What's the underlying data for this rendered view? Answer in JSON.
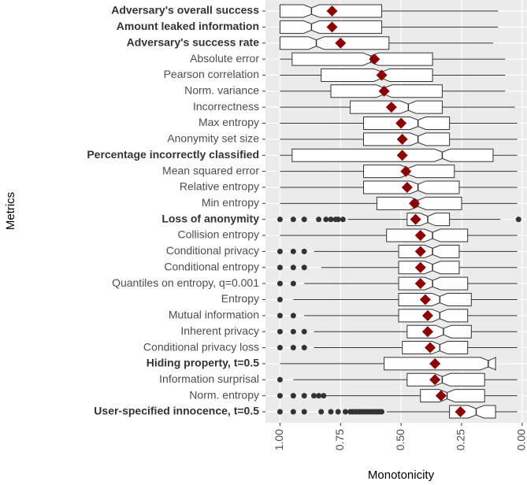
{
  "chart_data": {
    "type": "boxplot",
    "xlabel": "Monotonicity",
    "ylabel": "Metrics",
    "xlim": [
      1.06,
      -0.02
    ],
    "xticks": [
      {
        "value": 1,
        "label": "1.00"
      },
      {
        "value": 0.75,
        "label": "0.75"
      },
      {
        "value": 0.5,
        "label": "0.50"
      },
      {
        "value": 0.25,
        "label": "0.25"
      },
      {
        "value": 0,
        "label": "0.00"
      }
    ],
    "grid": true,
    "box_color": "#ffffff",
    "mean_color": "#8b0000",
    "outlier_color": "#333333",
    "categories": [
      "Adversary's overall success",
      "Amount leaked information",
      "Adversary's success rate",
      "Absolute error",
      "Pearson correlation",
      "Norm. variance",
      "Incorrectness",
      "Max entropy",
      "Anonymity set size",
      "Percentage incorrectly classified",
      "Mean squared error",
      "Relative entropy",
      "Min entropy",
      "Loss of anonymity",
      "Collision entropy",
      "Conditional privacy",
      "Conditional entropy",
      "Quantiles on entropy, q=0.001",
      "Entropy",
      "Mutual information",
      "Inherent privacy",
      "Conditional privacy loss",
      "Hiding property, t=0.5",
      "Information surprisal",
      "Norm. entropy",
      "User-specified innocence, t=0.5"
    ],
    "bold": [
      true,
      true,
      true,
      false,
      false,
      false,
      false,
      false,
      false,
      true,
      false,
      false,
      false,
      true,
      false,
      false,
      false,
      false,
      false,
      false,
      false,
      false,
      true,
      false,
      false,
      true
    ],
    "upper_whisker": [
      1.0,
      1.0,
      1.0,
      1.0,
      1.0,
      1.0,
      1.0,
      1.0,
      1.0,
      1.0,
      1.0,
      1.0,
      1.0,
      0.72,
      1.0,
      0.86,
      0.83,
      0.9,
      0.945,
      0.9,
      0.86,
      0.86,
      1.0,
      0.945,
      0.81,
      0.56
    ],
    "q3": [
      1.0,
      1.0,
      1.0,
      0.95,
      0.83,
      0.79,
      0.71,
      0.655,
      0.655,
      0.95,
      0.655,
      0.655,
      0.6,
      0.475,
      0.56,
      0.51,
      0.51,
      0.51,
      0.51,
      0.51,
      0.475,
      0.495,
      0.57,
      0.475,
      0.42,
      0.3
    ],
    "median": [
      0.87,
      0.87,
      0.85,
      0.625,
      0.58,
      0.57,
      0.47,
      0.43,
      0.43,
      0.33,
      0.47,
      0.43,
      0.43,
      0.39,
      0.37,
      0.37,
      0.37,
      0.37,
      0.34,
      0.34,
      0.325,
      0.34,
      0.14,
      0.33,
      0.31,
      0.19
    ],
    "q1": [
      0.58,
      0.58,
      0.55,
      0.37,
      0.37,
      0.33,
      0.33,
      0.3,
      0.3,
      0.12,
      0.28,
      0.26,
      0.25,
      0.3,
      0.225,
      0.26,
      0.26,
      0.225,
      0.21,
      0.225,
      0.21,
      0.225,
      0.11,
      0.155,
      0.155,
      0.11
    ],
    "lower_whisker": [
      0.1,
      0.1,
      0.12,
      0.07,
      0.07,
      0.07,
      0.03,
      0.02,
      0.02,
      0.02,
      0.02,
      0.02,
      0.02,
      0.09,
      0.02,
      0.02,
      0.02,
      0.02,
      0.02,
      0.02,
      0.02,
      0.02,
      0.11,
      0.02,
      0.02,
      0.02
    ],
    "mean": [
      0.785,
      0.785,
      0.75,
      0.61,
      0.58,
      0.57,
      0.54,
      0.5,
      0.495,
      0.495,
      0.48,
      0.475,
      0.445,
      0.44,
      0.42,
      0.42,
      0.42,
      0.42,
      0.4,
      0.39,
      0.39,
      0.38,
      0.36,
      0.36,
      0.335,
      0.255
    ],
    "outliers": [
      [],
      [],
      [],
      [],
      [],
      [],
      [],
      [],
      [],
      [],
      [],
      [],
      [],
      [
        1.0,
        0.945,
        0.9,
        0.84,
        0.81,
        0.79,
        0.77,
        0.76,
        0.74,
        0.015
      ],
      [],
      [
        1.0,
        0.945,
        0.9
      ],
      [
        1.0,
        0.945,
        0.9
      ],
      [
        1.0,
        0.945
      ],
      [
        1.0
      ],
      [
        1.0,
        0.945
      ],
      [
        1.0,
        0.945,
        0.9
      ],
      [
        1.0,
        0.945,
        0.9
      ],
      [],
      [
        1.0
      ],
      [
        1.0,
        0.945,
        0.9,
        0.86,
        0.84,
        0.82
      ],
      [
        1.0,
        0.945,
        0.9,
        0.83,
        0.79,
        0.76,
        0.73,
        0.71,
        0.7,
        0.69,
        0.68,
        0.67,
        0.66,
        0.65,
        0.64,
        0.63,
        0.62,
        0.61,
        0.6,
        0.59,
        0.58
      ]
    ]
  }
}
